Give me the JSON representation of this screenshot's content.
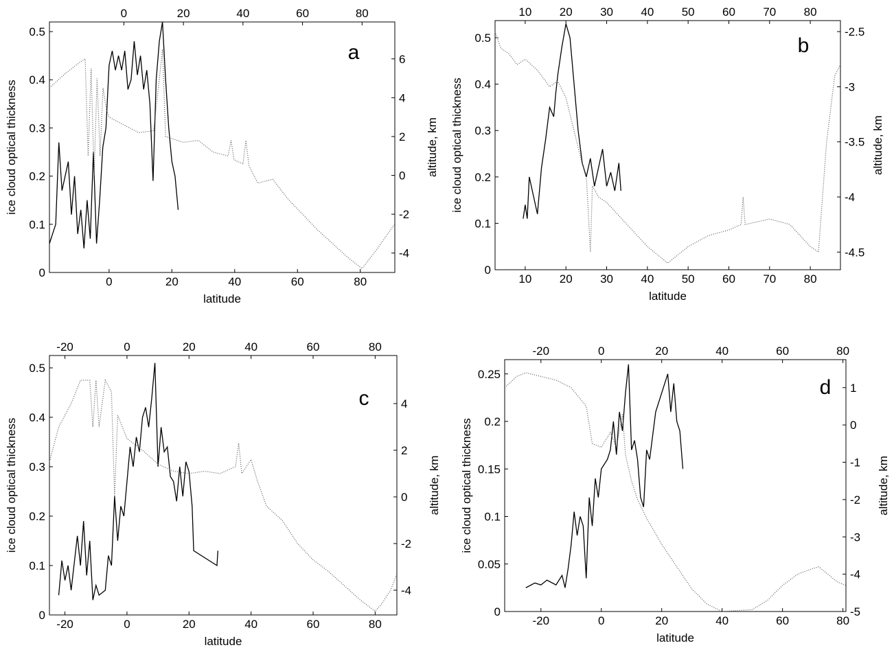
{
  "chart_data": [
    {
      "type": "line",
      "label": "a",
      "x_label": "latitude",
      "y_label": "ice cloud optical thickness",
      "y2_label": "altitude, km",
      "xlim": [
        -19,
        91
      ],
      "xticks": [
        0,
        20,
        40,
        60,
        80
      ],
      "x2lim": [
        -25,
        91
      ],
      "x2ticks": [
        0,
        20,
        40,
        60,
        80
      ],
      "ylim": [
        0,
        0.52
      ],
      "yticks": [
        0,
        0.1,
        0.2,
        0.3,
        0.4,
        0.5
      ],
      "y2lim": [
        -5,
        7.9
      ],
      "y2ticks": [
        -4,
        -2,
        0,
        2,
        4,
        6
      ],
      "series": [
        {
          "color": "#000000",
          "style": "solid",
          "x": [
            -19,
            -17,
            -16,
            -15,
            -13,
            -12,
            -11,
            -10,
            -9,
            -8,
            -7,
            -6,
            -5,
            -4,
            -3,
            -2,
            -1,
            0,
            1,
            2,
            3,
            4,
            5,
            6,
            7,
            8,
            9,
            10,
            11,
            12,
            13,
            14,
            15,
            16,
            17,
            18,
            19,
            20,
            21,
            22
          ],
          "values": [
            0.06,
            0.1,
            0.27,
            0.17,
            0.23,
            0.12,
            0.2,
            0.08,
            0.13,
            0.05,
            0.15,
            0.07,
            0.25,
            0.06,
            0.15,
            0.26,
            0.3,
            0.43,
            0.46,
            0.42,
            0.45,
            0.42,
            0.46,
            0.38,
            0.4,
            0.48,
            0.41,
            0.45,
            0.38,
            0.42,
            0.35,
            0.19,
            0.4,
            0.48,
            0.52,
            0.4,
            0.3,
            0.23,
            0.2,
            0.13
          ]
        },
        {
          "color": "#555555",
          "style": "dotted",
          "axis": "y2",
          "xaxis": "x2",
          "x": [
            -25,
            -20,
            -15,
            -13,
            -12,
            -11,
            -10,
            -9,
            -8,
            -7,
            -6,
            -5,
            0,
            5,
            10,
            13,
            14,
            20,
            25,
            30,
            35,
            36,
            37,
            40,
            41,
            42,
            45,
            50,
            55,
            60,
            65,
            70,
            75,
            80,
            85,
            91
          ],
          "values": [
            4.5,
            5.2,
            5.8,
            6.0,
            1,
            5.5,
            0,
            5,
            1,
            4.5,
            3.5,
            3.0,
            2.6,
            2.2,
            2.3,
            6.5,
            2.0,
            1.7,
            1.8,
            1.2,
            1.0,
            1.8,
            0.8,
            0.6,
            1.8,
            0.5,
            -0.4,
            -0.2,
            -1.2,
            -2.0,
            -2.8,
            -3.5,
            -4.2,
            -4.8,
            -3.8,
            -2.5
          ]
        }
      ]
    },
    {
      "type": "line",
      "label": "b",
      "x_label": "latitude",
      "y_label": "ice cloud optical thickness",
      "y2_label": "altitude, km",
      "xlim": [
        2.6,
        87.4
      ],
      "xticks": [
        10,
        20,
        30,
        40,
        50,
        60,
        70,
        80
      ],
      "x2lim": [
        2.6,
        87.4
      ],
      "x2ticks": [
        10,
        20,
        30,
        40,
        50,
        60,
        70,
        80
      ],
      "ylim": [
        0,
        0.537
      ],
      "yticks": [
        0,
        0.1,
        0.2,
        0.3,
        0.4,
        0.5
      ],
      "y2lim": [
        -4.66,
        -2.4
      ],
      "y2ticks": [
        -4.5,
        -4,
        -3.5,
        -3,
        -2.5
      ],
      "series": [
        {
          "color": "#000000",
          "style": "solid",
          "x": [
            9.5,
            10,
            10.5,
            11,
            12,
            13,
            14,
            15,
            16,
            17,
            17.5,
            18,
            19,
            20,
            21,
            22,
            23,
            24,
            25,
            26,
            27,
            28,
            29,
            30,
            31,
            32,
            33,
            33.5
          ],
          "values": [
            0.11,
            0.14,
            0.11,
            0.2,
            0.16,
            0.12,
            0.22,
            0.28,
            0.35,
            0.33,
            0.38,
            0.42,
            0.48,
            0.53,
            0.5,
            0.4,
            0.3,
            0.23,
            0.2,
            0.24,
            0.18,
            0.22,
            0.26,
            0.18,
            0.21,
            0.17,
            0.23,
            0.17
          ]
        },
        {
          "color": "#555555",
          "style": "dotted",
          "axis": "y2",
          "xaxis": "x2",
          "x": [
            2.6,
            4,
            6,
            8,
            10,
            13,
            16,
            18,
            20,
            22,
            24,
            25,
            26,
            26.5,
            28,
            30,
            35,
            40,
            45,
            50,
            55,
            60,
            63,
            63.5,
            64,
            70,
            75,
            80,
            82,
            84,
            86,
            87.4
          ],
          "values": [
            -2.5,
            -2.65,
            -2.7,
            -2.8,
            -2.75,
            -2.85,
            -3.0,
            -2.95,
            -3.1,
            -3.4,
            -3.7,
            -3.8,
            -4.5,
            -3.9,
            -4.0,
            -4.05,
            -4.25,
            -4.45,
            -4.6,
            -4.45,
            -4.35,
            -4.3,
            -4.25,
            -4.0,
            -4.25,
            -4.2,
            -4.25,
            -4.45,
            -4.5,
            -3.5,
            -2.9,
            -2.8
          ]
        }
      ]
    },
    {
      "type": "line",
      "label": "c",
      "x_label": "latitude",
      "y_label": "ice cloud optical thickness",
      "y2_label": "altitude, km",
      "xlim": [
        -25,
        87
      ],
      "xticks": [
        -20,
        0,
        20,
        40,
        60,
        80
      ],
      "x2lim": [
        -25,
        87
      ],
      "x2ticks": [
        -20,
        0,
        20,
        40,
        60,
        80
      ],
      "ylim": [
        0,
        0.525
      ],
      "yticks": [
        0,
        0.1,
        0.2,
        0.3,
        0.4,
        0.5
      ],
      "y2lim": [
        -5.06,
        6.06
      ],
      "y2ticks": [
        -4,
        -2,
        0,
        2,
        4
      ],
      "series": [
        {
          "color": "#000000",
          "style": "solid",
          "x": [
            -22,
            -21,
            -20,
            -19,
            -18,
            -16,
            -15,
            -14,
            -13,
            -12,
            -11,
            -10,
            -9,
            -7,
            -6,
            -5,
            -4,
            -3,
            -2,
            -1,
            0,
            1,
            2,
            3,
            4,
            5,
            6,
            7,
            8,
            9,
            10,
            11,
            12,
            13,
            14,
            15,
            16,
            17,
            18,
            19,
            20,
            21,
            21.5,
            29,
            29.3
          ],
          "values": [
            0.04,
            0.11,
            0.07,
            0.1,
            0.05,
            0.16,
            0.1,
            0.19,
            0.08,
            0.15,
            0.03,
            0.06,
            0.04,
            0.05,
            0.12,
            0.1,
            0.24,
            0.15,
            0.22,
            0.2,
            0.27,
            0.34,
            0.3,
            0.36,
            0.33,
            0.4,
            0.42,
            0.38,
            0.44,
            0.51,
            0.3,
            0.38,
            0.33,
            0.34,
            0.28,
            0.27,
            0.23,
            0.3,
            0.24,
            0.31,
            0.29,
            0.22,
            0.13,
            0.1,
            0.13
          ]
        },
        {
          "color": "#555555",
          "style": "dotted",
          "axis": "y2",
          "xaxis": "x2",
          "x": [
            -25,
            -22,
            -18,
            -15,
            -12,
            -11,
            -10,
            -9,
            -7,
            -5,
            -4,
            -3,
            0,
            5,
            10,
            15,
            20,
            25,
            30,
            35,
            36,
            37,
            40,
            42,
            45,
            50,
            55,
            60,
            65,
            70,
            75,
            80,
            82,
            85,
            87
          ],
          "values": [
            1.5,
            3,
            4,
            5,
            5,
            3,
            5,
            3,
            5,
            4.5,
            0,
            3.5,
            2.5,
            2.0,
            1.4,
            1.1,
            1.0,
            1.1,
            1.0,
            1.3,
            2.3,
            1.0,
            1.6,
            0.7,
            -0.4,
            -1.0,
            -2.0,
            -2.7,
            -3.2,
            -3.8,
            -4.4,
            -4.9,
            -4.6,
            -4.0,
            -3.3
          ]
        }
      ]
    },
    {
      "type": "line",
      "label": "d",
      "x_label": "latitude",
      "y_label": "ice cloud optical thickness",
      "y2_label": "altitude, km",
      "xlim": [
        -32,
        81
      ],
      "xticks": [
        -20,
        0,
        20,
        40,
        60,
        80
      ],
      "x2lim": [
        -32,
        81
      ],
      "x2ticks": [
        -20,
        0,
        20,
        40,
        60,
        80
      ],
      "ylim": [
        0,
        0.265
      ],
      "yticks": [
        0,
        0.05,
        0.1,
        0.15,
        0.2,
        0.25
      ],
      "y2lim": [
        -5,
        1.75
      ],
      "y2ticks": [
        -5,
        -4,
        -3,
        -2,
        -1,
        0,
        1
      ],
      "series": [
        {
          "color": "#000000",
          "style": "solid",
          "x": [
            -25,
            -22,
            -20,
            -18,
            -15,
            -13,
            -12,
            -11,
            -10,
            -9,
            -8,
            -7,
            -6,
            -5,
            -4,
            -3,
            -2,
            -1,
            0,
            2,
            3,
            4,
            5,
            6,
            7,
            8,
            9,
            10,
            11,
            12,
            13,
            14,
            15,
            16,
            18,
            20,
            22,
            23,
            24,
            25,
            26,
            27
          ],
          "values": [
            0.025,
            0.03,
            0.028,
            0.033,
            0.028,
            0.038,
            0.025,
            0.045,
            0.07,
            0.105,
            0.08,
            0.1,
            0.09,
            0.035,
            0.12,
            0.09,
            0.14,
            0.12,
            0.15,
            0.16,
            0.17,
            0.2,
            0.165,
            0.21,
            0.19,
            0.23,
            0.26,
            0.17,
            0.18,
            0.16,
            0.12,
            0.11,
            0.17,
            0.16,
            0.21,
            0.23,
            0.25,
            0.21,
            0.24,
            0.2,
            0.19,
            0.15
          ]
        },
        {
          "color": "#555555",
          "style": "dotted",
          "axis": "y2",
          "xaxis": "x2",
          "x": [
            -32,
            -28,
            -25,
            -20,
            -15,
            -10,
            -5,
            -3,
            0,
            3,
            5,
            7,
            8,
            10,
            12,
            15,
            20,
            25,
            30,
            35,
            40,
            50,
            55,
            60,
            65,
            70,
            72,
            75,
            78,
            81
          ],
          "values": [
            1.0,
            1.3,
            1.4,
            1.3,
            1.2,
            1.0,
            0.5,
            -0.5,
            -0.6,
            -0.2,
            -0.6,
            0.3,
            -0.8,
            -1.5,
            -2.0,
            -2.5,
            -3.2,
            -3.8,
            -4.4,
            -4.8,
            -5.0,
            -4.95,
            -4.7,
            -4.3,
            -4.0,
            -3.85,
            -3.8,
            -4.0,
            -4.2,
            -4.3
          ]
        }
      ]
    }
  ]
}
